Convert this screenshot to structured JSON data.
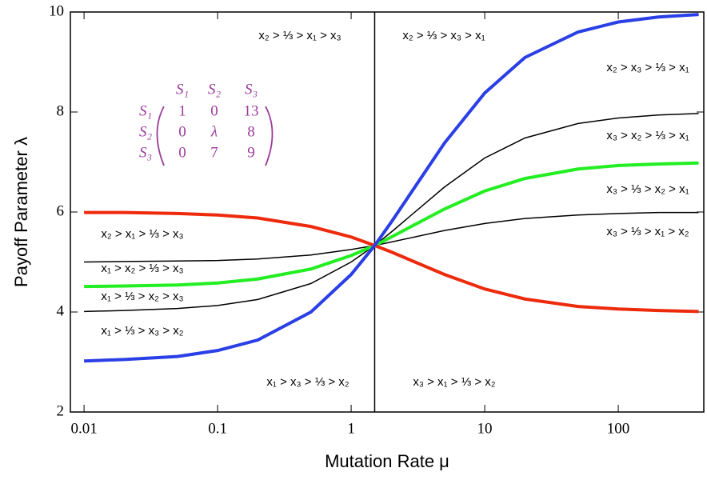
{
  "chart_data": {
    "type": "line",
    "x_label": "Mutation Rate μ",
    "y_label": "Payoff Parameter λ",
    "x": [
      0.01,
      0.02,
      0.05,
      0.1,
      0.2,
      0.5,
      1,
      1.5,
      2,
      5,
      10,
      20,
      50,
      100,
      200,
      400
    ],
    "series": [
      {
        "color": "#2a3fe6",
        "width": 4,
        "values": [
          3.02,
          3.05,
          3.11,
          3.23,
          3.44,
          4.0,
          4.75,
          5.33,
          5.8,
          7.38,
          8.38,
          9.09,
          9.6,
          9.8,
          9.9,
          9.95
        ]
      },
      {
        "color": "#ee2a0c",
        "width": 4,
        "values": [
          5.99,
          5.99,
          5.97,
          5.94,
          5.88,
          5.71,
          5.5,
          5.33,
          5.2,
          4.75,
          4.46,
          4.26,
          4.11,
          4.06,
          4.03,
          4.01
        ]
      },
      {
        "color": "#22ee22",
        "width": 4,
        "values": [
          4.51,
          4.52,
          4.54,
          4.58,
          4.66,
          4.86,
          5.13,
          5.33,
          5.5,
          6.06,
          6.42,
          6.67,
          6.86,
          6.93,
          6.96,
          6.98
        ]
      },
      {
        "color": "#000000",
        "width": 1.5,
        "values": [
          5.0,
          5.01,
          5.02,
          5.03,
          5.06,
          5.14,
          5.25,
          5.33,
          5.4,
          5.63,
          5.77,
          5.87,
          5.94,
          5.97,
          5.99,
          5.99
        ]
      },
      {
        "color": "#000000",
        "width": 1.5,
        "values": [
          4.01,
          4.03,
          4.07,
          4.13,
          4.25,
          4.57,
          5.0,
          5.33,
          5.6,
          6.5,
          7.08,
          7.48,
          7.77,
          7.88,
          7.94,
          7.97
        ]
      }
    ],
    "vline": 1.5,
    "xscale": "log",
    "xlim": [
      0.0079,
      437
    ],
    "xticks": [
      0.01,
      0.1,
      1,
      10,
      100
    ],
    "ylim": [
      2,
      10
    ],
    "yticks": [
      2,
      4,
      6,
      8,
      10
    ],
    "annotations": [
      "x₂ > ⅓ > x₁ > x₃",
      "x₂ > ⅓ > x₃ > x₁",
      "x₂ > x₃ > ⅓ > x₁",
      "x₃ > x₂ > ⅓ > x₁",
      "x₃ > ⅓ > x₂ > x₁",
      "x₃ > ⅓ > x₁ > x₂",
      "x₂ > x₁ > ⅓ > x₃",
      "x₁ > x₂ > ⅓ > x₃",
      "x₁ > ⅓ > x₂ > x₃",
      "x₁ > ⅓ > x₃ > x₂",
      "x₁ > x₃ > ⅓ > x₂",
      "x₃ > x₁ > ⅓ > x₂"
    ],
    "matrix": {
      "col_labels": [
        "S₁",
        "S₂",
        "S₃"
      ],
      "row_labels": [
        "S₁",
        "S₂",
        "S₃"
      ],
      "rows": [
        [
          "1",
          "0",
          "13"
        ],
        [
          "0",
          "λ",
          "8"
        ],
        [
          "0",
          "7",
          "9"
        ]
      ]
    }
  }
}
